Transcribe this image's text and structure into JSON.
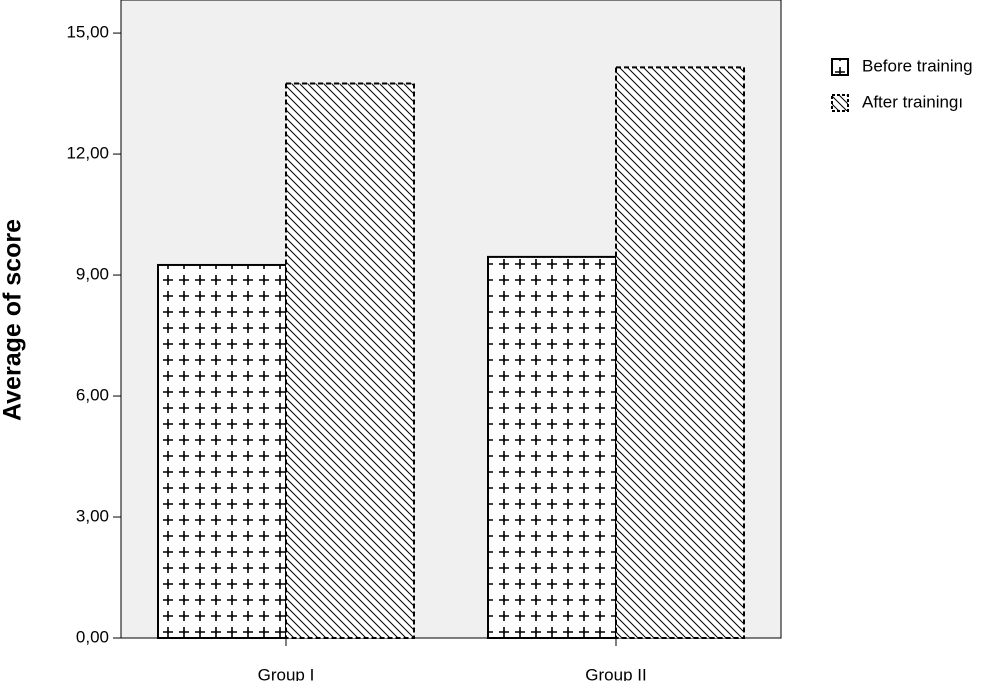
{
  "chart_data": {
    "type": "bar",
    "y_label": "Average of score",
    "categories": [
      "Group I",
      "Group II"
    ],
    "series": [
      {
        "name": "Before training",
        "values": [
          9.25,
          9.45
        ]
      },
      {
        "name": "After trainingı",
        "values": [
          13.75,
          14.15
        ]
      }
    ],
    "ylim": [
      0,
      15.82
    ],
    "yticks": [
      {
        "value": 0,
        "label": "0,00"
      },
      {
        "value": 3,
        "label": "3,00"
      },
      {
        "value": 6,
        "label": "6,00"
      },
      {
        "value": 9,
        "label": "9,00"
      },
      {
        "value": 12,
        "label": "12,00"
      },
      {
        "value": 15,
        "label": "15,00"
      }
    ],
    "legend": "right"
  }
}
